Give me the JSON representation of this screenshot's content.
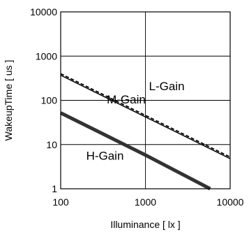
{
  "chart_data": {
    "type": "line",
    "title": "",
    "xlabel": "Illuminance [ lx ]",
    "ylabel": "WakeupTime [ us ]",
    "x_scale": "log",
    "y_scale": "log",
    "xlim": [
      100,
      10000
    ],
    "ylim": [
      1,
      10000
    ],
    "x_ticks": [
      100,
      1000,
      10000
    ],
    "x_tick_labels": [
      "100",
      "1000",
      "10000"
    ],
    "y_ticks": [
      1,
      10,
      100,
      1000,
      10000
    ],
    "y_tick_labels": [
      "1",
      "10",
      "100",
      "1000",
      "10000"
    ],
    "grid": true,
    "legend": "none",
    "series": [
      {
        "name": "L-Gain",
        "style": "dashed",
        "color": "#000000",
        "x": [
          100,
          10000
        ],
        "y": [
          400,
          5.2
        ]
      },
      {
        "name": "M-Gain",
        "style": "solid-thin",
        "color": "#000000",
        "x": [
          100,
          10000
        ],
        "y": [
          370,
          4.8
        ]
      },
      {
        "name": "H-Gain",
        "style": "solid-thick",
        "color": "#333333",
        "x": [
          100,
          1000,
          5800
        ],
        "y": [
          52,
          5.8,
          1
        ]
      }
    ],
    "annotations": [
      {
        "text": "L-Gain",
        "x": 1100,
        "y": 170
      },
      {
        "text": "M-Gain",
        "x": 350,
        "y": 85
      },
      {
        "text": "H-Gain",
        "x": 200,
        "y": 4.5
      }
    ]
  }
}
